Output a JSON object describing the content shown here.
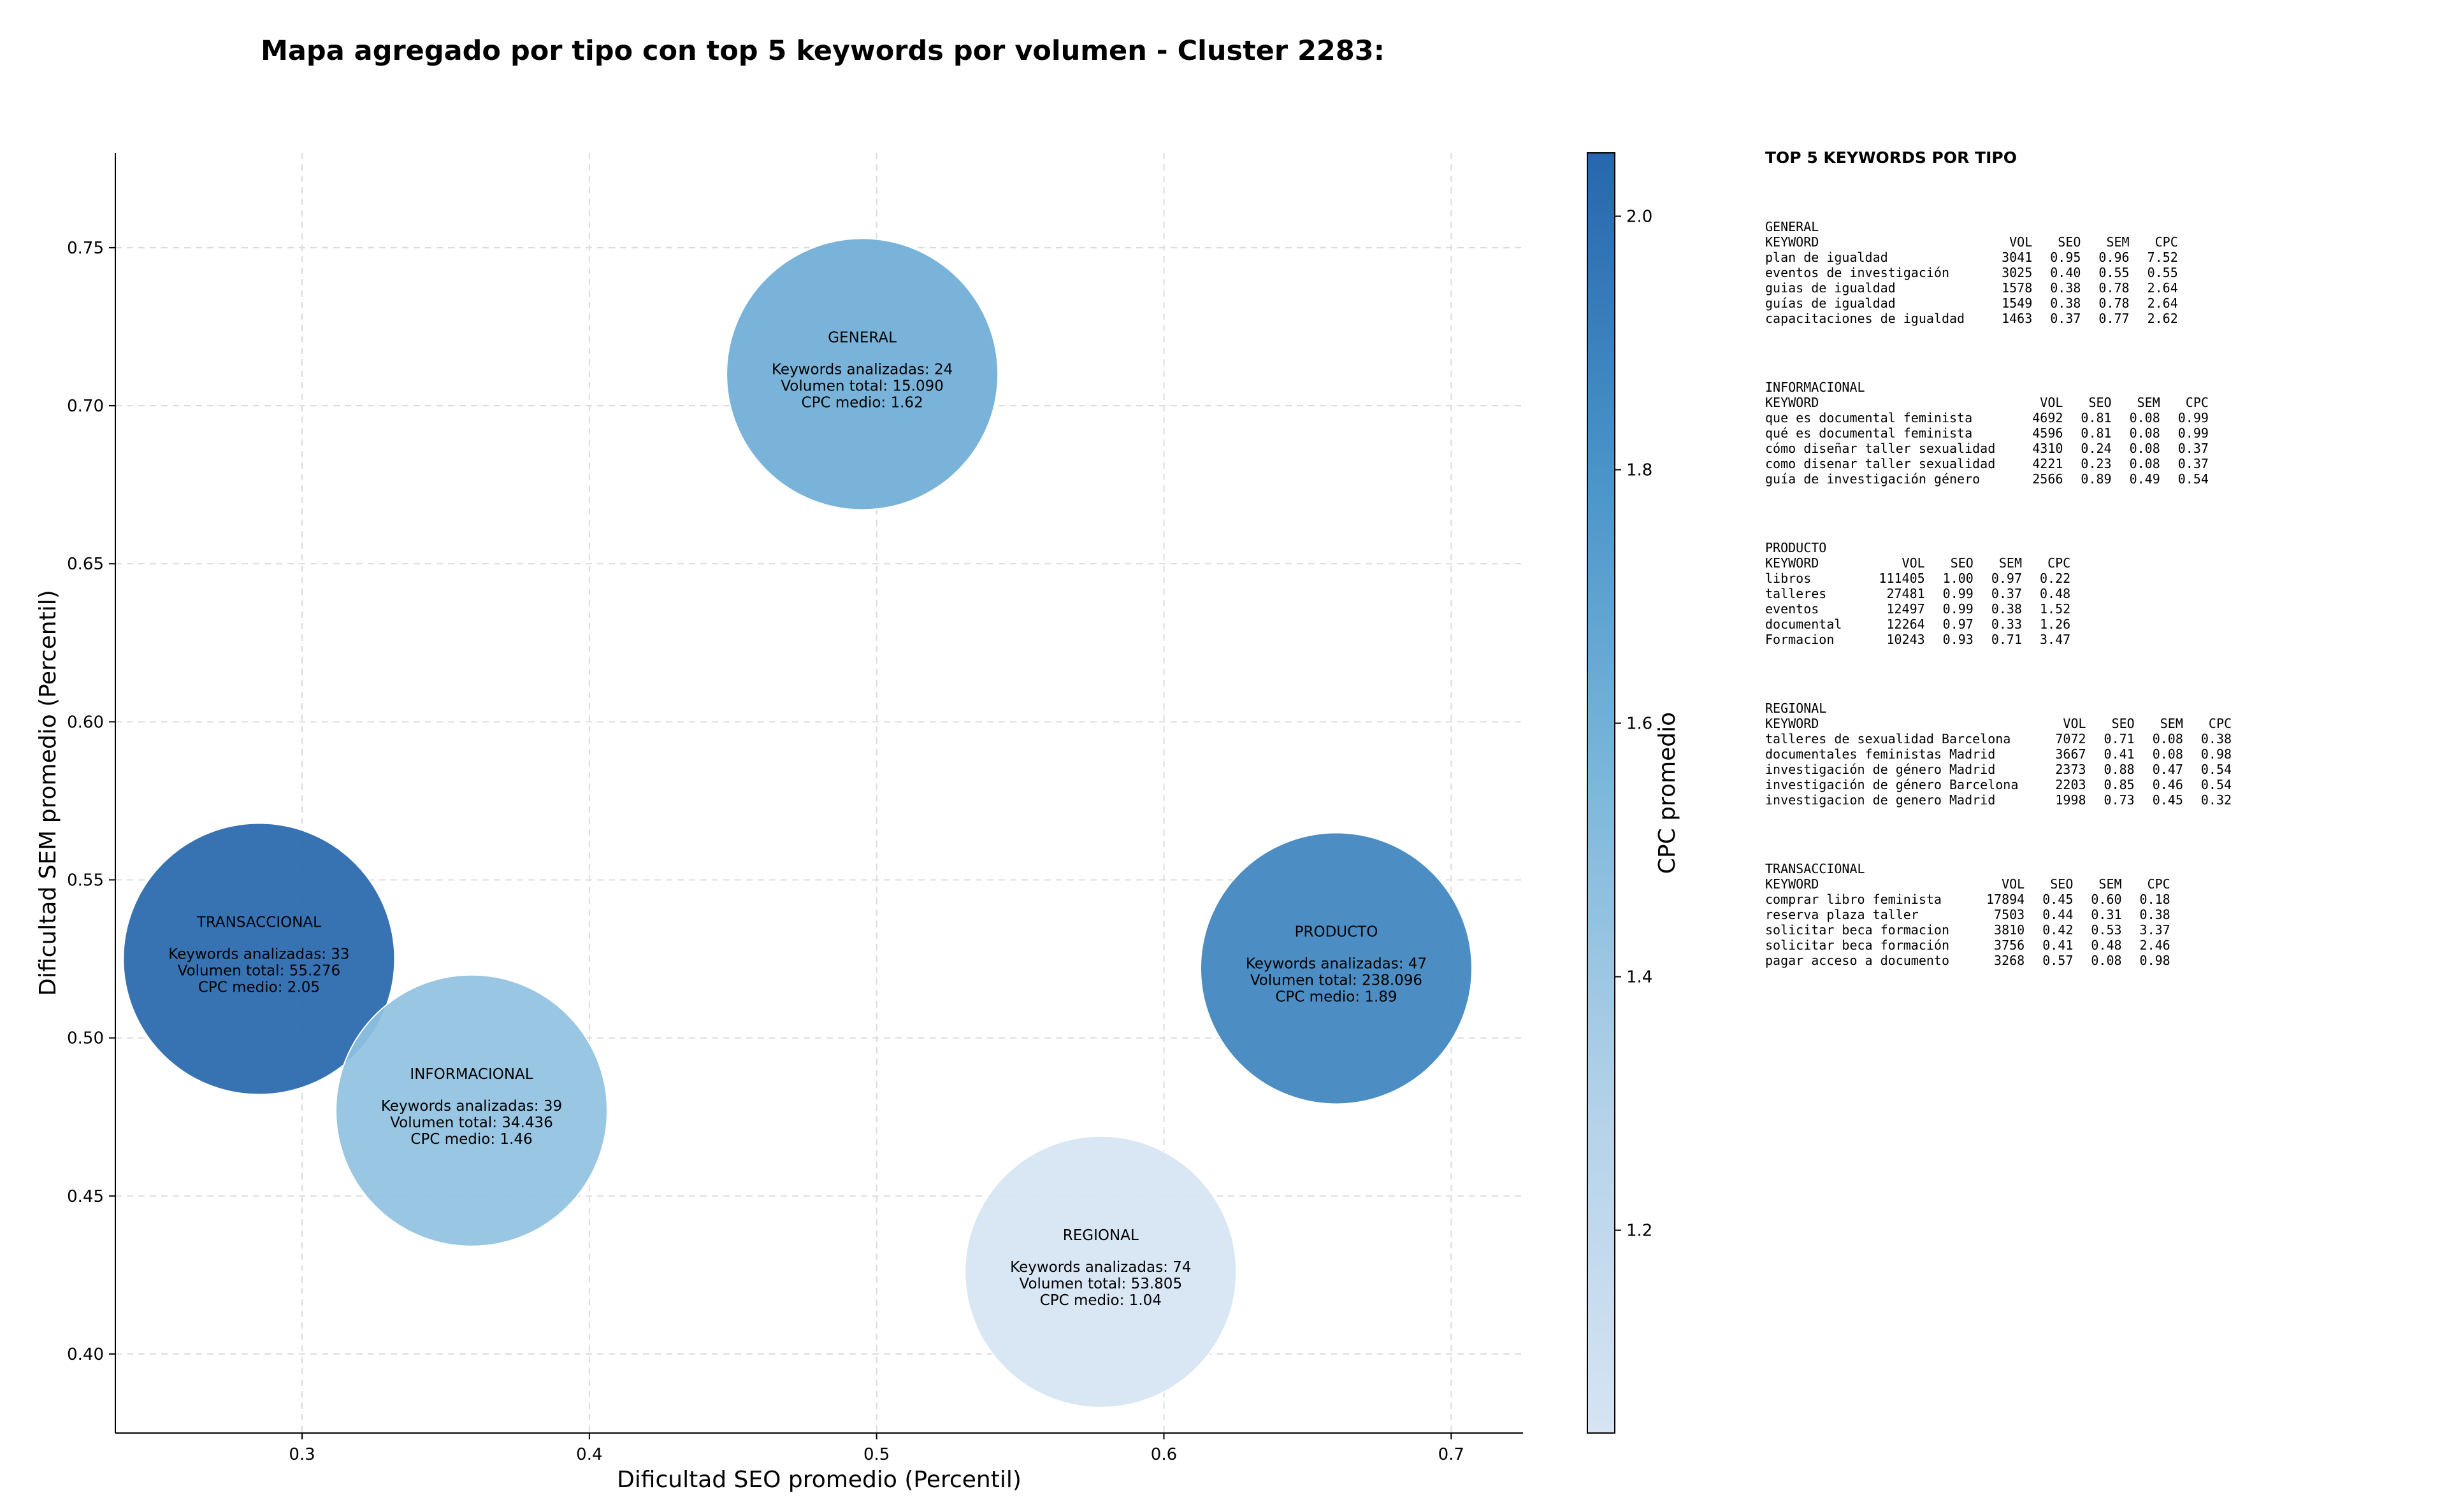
{
  "chart_data": {
    "type": "bubble",
    "title": "Mapa agregado por tipo con top 5 keywords por volumen - Cluster 2283:",
    "xlabel": "Dificultad SEO promedio (Percentil)",
    "ylabel": "Dificultad SEM promedio (Percentil)",
    "xlim": [
      0.235,
      0.725
    ],
    "ylim": [
      0.375,
      0.78
    ],
    "xticks": [
      "0.3",
      "0.4",
      "0.5",
      "0.6",
      "0.7"
    ],
    "yticks": [
      "0.40",
      "0.45",
      "0.50",
      "0.55",
      "0.60",
      "0.65",
      "0.70",
      "0.75"
    ],
    "grid": true,
    "colorbar": {
      "label": "CPC promedio",
      "min": 1.04,
      "max": 2.05,
      "ticks": [
        "1.2",
        "1.4",
        "1.6",
        "1.8",
        "2.0"
      ],
      "colormap": [
        "#d6e4f3",
        "#9fc9e2",
        "#64a8d4",
        "#3a84c0",
        "#2666ad"
      ]
    },
    "bubbles": [
      {
        "name": "GENERAL",
        "x": 0.495,
        "y": 0.71,
        "label_keywords": "Keywords analizadas: 24",
        "label_volume": "Volumen total: 15.090",
        "label_cpc": "CPC medio: 1.62",
        "cpc": 1.62,
        "keywords": 24,
        "volume": 15090
      },
      {
        "name": "TRANSACCIONAL",
        "x": 0.285,
        "y": 0.525,
        "label_keywords": "Keywords analizadas: 33",
        "label_volume": "Volumen total: 55.276",
        "label_cpc": "CPC medio: 2.05",
        "cpc": 2.05,
        "keywords": 33,
        "volume": 55276
      },
      {
        "name": "INFORMACIONAL",
        "x": 0.359,
        "y": 0.477,
        "label_keywords": "Keywords analizadas: 39",
        "label_volume": "Volumen total: 34.436",
        "label_cpc": "CPC medio: 1.46",
        "cpc": 1.46,
        "keywords": 39,
        "volume": 34436
      },
      {
        "name": "PRODUCTO",
        "x": 0.66,
        "y": 0.522,
        "label_keywords": "Keywords analizadas: 47",
        "label_volume": "Volumen total: 238.096",
        "label_cpc": "CPC medio: 1.89",
        "cpc": 1.89,
        "keywords": 47,
        "volume": 238096
      },
      {
        "name": "REGIONAL",
        "x": 0.578,
        "y": 0.426,
        "label_keywords": "Keywords analizadas: 74",
        "label_volume": "Volumen total: 53.805",
        "label_cpc": "CPC medio: 1.04",
        "cpc": 1.04,
        "keywords": 74,
        "volume": 53805
      }
    ]
  },
  "panel": {
    "title": "TOP 5 KEYWORDS POR TIPO",
    "columns": [
      "KEYWORD",
      "VOL",
      "SEO",
      "SEM",
      "CPC"
    ],
    "groups": [
      {
        "name": "GENERAL",
        "rows": [
          [
            "plan de igualdad",
            "3041",
            "0.95",
            "0.96",
            "7.52"
          ],
          [
            "eventos de investigación",
            "3025",
            "0.40",
            "0.55",
            "0.55"
          ],
          [
            "guias de igualdad",
            "1578",
            "0.38",
            "0.78",
            "2.64"
          ],
          [
            "guías de igualdad",
            "1549",
            "0.38",
            "0.78",
            "2.64"
          ],
          [
            "capacitaciones de igualdad",
            "1463",
            "0.37",
            "0.77",
            "2.62"
          ]
        ]
      },
      {
        "name": "INFORMACIONAL",
        "rows": [
          [
            "que es documental feminista",
            "4692",
            "0.81",
            "0.08",
            "0.99"
          ],
          [
            "qué es documental feminista",
            "4596",
            "0.81",
            "0.08",
            "0.99"
          ],
          [
            "cómo diseñar taller sexualidad",
            "4310",
            "0.24",
            "0.08",
            "0.37"
          ],
          [
            "como disenar taller sexualidad",
            "4221",
            "0.23",
            "0.08",
            "0.37"
          ],
          [
            "guía de investigación género",
            "2566",
            "0.89",
            "0.49",
            "0.54"
          ]
        ]
      },
      {
        "name": "PRODUCTO",
        "rows": [
          [
            "libros",
            "111405",
            "1.00",
            "0.97",
            "0.22"
          ],
          [
            "talleres",
            "27481",
            "0.99",
            "0.37",
            "0.48"
          ],
          [
            "eventos",
            "12497",
            "0.99",
            "0.38",
            "1.52"
          ],
          [
            "documental",
            "12264",
            "0.97",
            "0.33",
            "1.26"
          ],
          [
            "Formacion",
            "10243",
            "0.93",
            "0.71",
            "3.47"
          ]
        ]
      },
      {
        "name": "REGIONAL",
        "rows": [
          [
            "talleres de sexualidad Barcelona",
            "7072",
            "0.71",
            "0.08",
            "0.38"
          ],
          [
            "documentales feministas Madrid",
            "3667",
            "0.41",
            "0.08",
            "0.98"
          ],
          [
            "investigación de género Madrid",
            "2373",
            "0.88",
            "0.47",
            "0.54"
          ],
          [
            "investigación de género Barcelona",
            "2203",
            "0.85",
            "0.46",
            "0.54"
          ],
          [
            "investigacion de genero Madrid",
            "1998",
            "0.73",
            "0.45",
            "0.32"
          ]
        ]
      },
      {
        "name": "TRANSACCIONAL",
        "rows": [
          [
            "comprar libro feminista",
            "17894",
            "0.45",
            "0.60",
            "0.18"
          ],
          [
            "reserva plaza taller",
            "7503",
            "0.44",
            "0.31",
            "0.38"
          ],
          [
            "solicitar beca formacion",
            "3810",
            "0.42",
            "0.53",
            "3.37"
          ],
          [
            "solicitar beca formación",
            "3756",
            "0.41",
            "0.48",
            "2.46"
          ],
          [
            "pagar acceso a documento",
            "3268",
            "0.57",
            "0.08",
            "0.98"
          ]
        ]
      }
    ]
  }
}
